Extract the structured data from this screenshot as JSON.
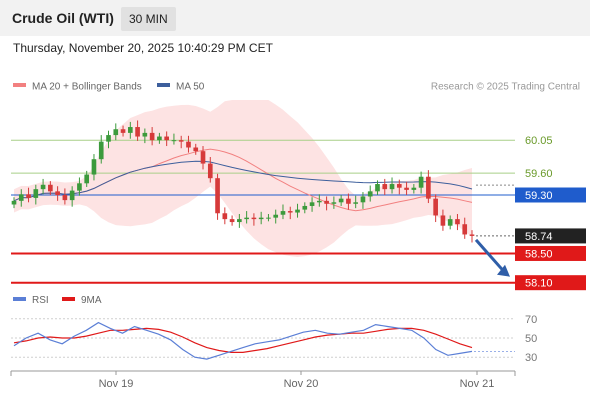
{
  "header": {
    "title": "Crude Oil (WTI)",
    "timeframe": "30 MIN"
  },
  "datetime": "Thursday, November 20, 2025 10:40:29 PM CET",
  "colors": {
    "up": "#3c9a3c",
    "down": "#d63a3a",
    "ma20": "#f28080",
    "ma50": "#3d5f9c",
    "band": "#fde3e3",
    "support": "#e01919",
    "resistance": "#a8cf88",
    "pivot": "#1f5ccc",
    "arrow": "#2f5ea8",
    "rsi": "#5b7fd6",
    "rsi_ma": "#e01919"
  },
  "chart_data": [
    {
      "type": "candlestick",
      "title": "Crude Oil (WTI)",
      "source": "Research © 2025 Trading Central",
      "legend": [
        {
          "label": "MA 20 + Bollinger Bands",
          "color": "#f28080"
        },
        {
          "label": "MA 50",
          "color": "#3d5f9c"
        }
      ],
      "ylim": [
        58.0,
        60.6
      ],
      "x_ticks": [
        "Nov 19",
        "Nov 20",
        "Nov 21"
      ],
      "closes": [
        59.22,
        59.31,
        59.26,
        59.38,
        59.44,
        59.35,
        59.3,
        59.23,
        59.36,
        59.46,
        59.58,
        59.79,
        60.03,
        60.12,
        60.2,
        60.15,
        60.23,
        60.1,
        60.15,
        60.05,
        60.1,
        60.05,
        60.05,
        60.03,
        59.95,
        59.9,
        59.73,
        59.53,
        59.05,
        58.97,
        58.93,
        58.97,
        58.99,
        58.97,
        58.99,
        58.99,
        59.03,
        59.08,
        59.06,
        59.1,
        59.15,
        59.2,
        59.22,
        59.18,
        59.2,
        59.25,
        59.18,
        59.2,
        59.28,
        59.35,
        59.45,
        59.38,
        59.45,
        59.4,
        59.37,
        59.4,
        59.55,
        59.25,
        59.02,
        58.88,
        58.97,
        58.9,
        58.76,
        58.74
      ],
      "levels": [
        {
          "label": "60.05",
          "value": 60.05,
          "kind": "resistance"
        },
        {
          "label": "59.60",
          "value": 59.6,
          "kind": "resistance"
        },
        {
          "label": "59.30",
          "value": 59.3,
          "kind": "pivot"
        },
        {
          "label": "58.74",
          "value": 58.74,
          "kind": "last"
        },
        {
          "label": "58.50",
          "value": 58.5,
          "kind": "support"
        },
        {
          "label": "58.10",
          "value": 58.1,
          "kind": "support"
        }
      ]
    },
    {
      "type": "line",
      "title": "RSI",
      "legend": [
        {
          "label": "RSI",
          "color": "#5b7fd6"
        },
        {
          "label": "9MA",
          "color": "#e01919"
        }
      ],
      "ylim": [
        25,
        75
      ],
      "y_ticks": [
        "70",
        "50",
        "30"
      ],
      "x_ticks": [
        "Nov 19",
        "Nov 20",
        "Nov 21"
      ],
      "series": [
        {
          "name": "RSI",
          "values": [
            42,
            50,
            55,
            48,
            44,
            52,
            58,
            66,
            60,
            55,
            62,
            58,
            54,
            48,
            38,
            30,
            28,
            32,
            36,
            40,
            44,
            46,
            48,
            52,
            56,
            58,
            55,
            54,
            56,
            58,
            64,
            62,
            60,
            58,
            50,
            38,
            32,
            34,
            36
          ]
        },
        {
          "name": "9MA",
          "values": [
            45,
            47,
            50,
            51,
            50,
            50,
            52,
            55,
            58,
            58,
            59,
            60,
            59,
            56,
            51,
            45,
            40,
            37,
            35,
            35,
            37,
            39,
            42,
            45,
            48,
            51,
            53,
            54,
            55,
            55,
            57,
            59,
            60,
            60,
            58,
            54,
            49,
            44,
            40
          ]
        }
      ]
    }
  ]
}
